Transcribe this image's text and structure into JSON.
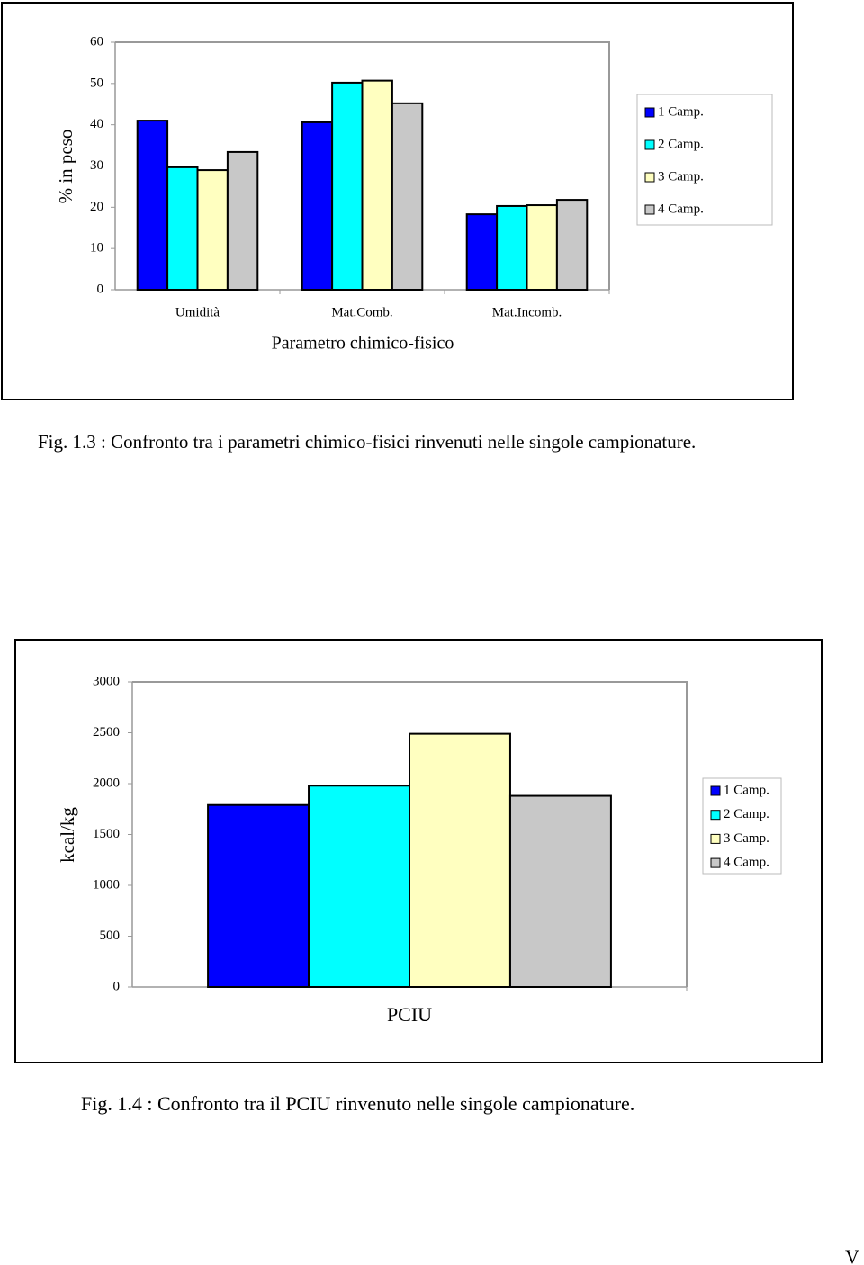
{
  "chart_data": [
    {
      "type": "bar",
      "y_label": "% in peso",
      "x_label": "Parametro chimico-fisico",
      "categories": [
        "Umidità",
        "Mat.Comb.",
        "Mat.Incomb."
      ],
      "series": [
        {
          "name": "1 Camp.",
          "color": "#0000ff",
          "values": [
            41,
            40.6,
            18.3
          ]
        },
        {
          "name": "2 Camp.",
          "color": "#00ffff",
          "values": [
            29.7,
            50.2,
            20.3
          ]
        },
        {
          "name": "3 Camp.",
          "color": "#ffffc0",
          "values": [
            29,
            50.7,
            20.5
          ]
        },
        {
          "name": "4 Camp.",
          "color": "#c8c8c8",
          "values": [
            33.4,
            45.2,
            21.8
          ]
        }
      ],
      "ylim": [
        0,
        60
      ],
      "yticks": [
        0,
        10,
        20,
        30,
        40,
        50,
        60
      ],
      "grid": false,
      "legend": "right"
    },
    {
      "type": "bar",
      "y_label": "kcal/kg",
      "categories": [
        "PCIU"
      ],
      "series": [
        {
          "name": "1 Camp.",
          "color": "#0000ff",
          "values": [
            1790
          ]
        },
        {
          "name": "2 Camp.",
          "color": "#00ffff",
          "values": [
            1980
          ]
        },
        {
          "name": "3 Camp.",
          "color": "#ffffc0",
          "values": [
            2490
          ]
        },
        {
          "name": "4 Camp.",
          "color": "#c8c8c8",
          "values": [
            1880
          ]
        }
      ],
      "ylim": [
        0,
        3000
      ],
      "yticks": [
        0,
        500,
        1000,
        1500,
        2000,
        2500,
        3000
      ],
      "grid": false,
      "legend": "right"
    }
  ],
  "captions": [
    "Fig. 1.3 : Confronto tra i parametri chimico-fisici rinvenuti nelle singole campionature.",
    "Fig. 1.4 : Confronto tra il PCIU rinvenuto nelle singole campionature."
  ],
  "page_number": "V"
}
